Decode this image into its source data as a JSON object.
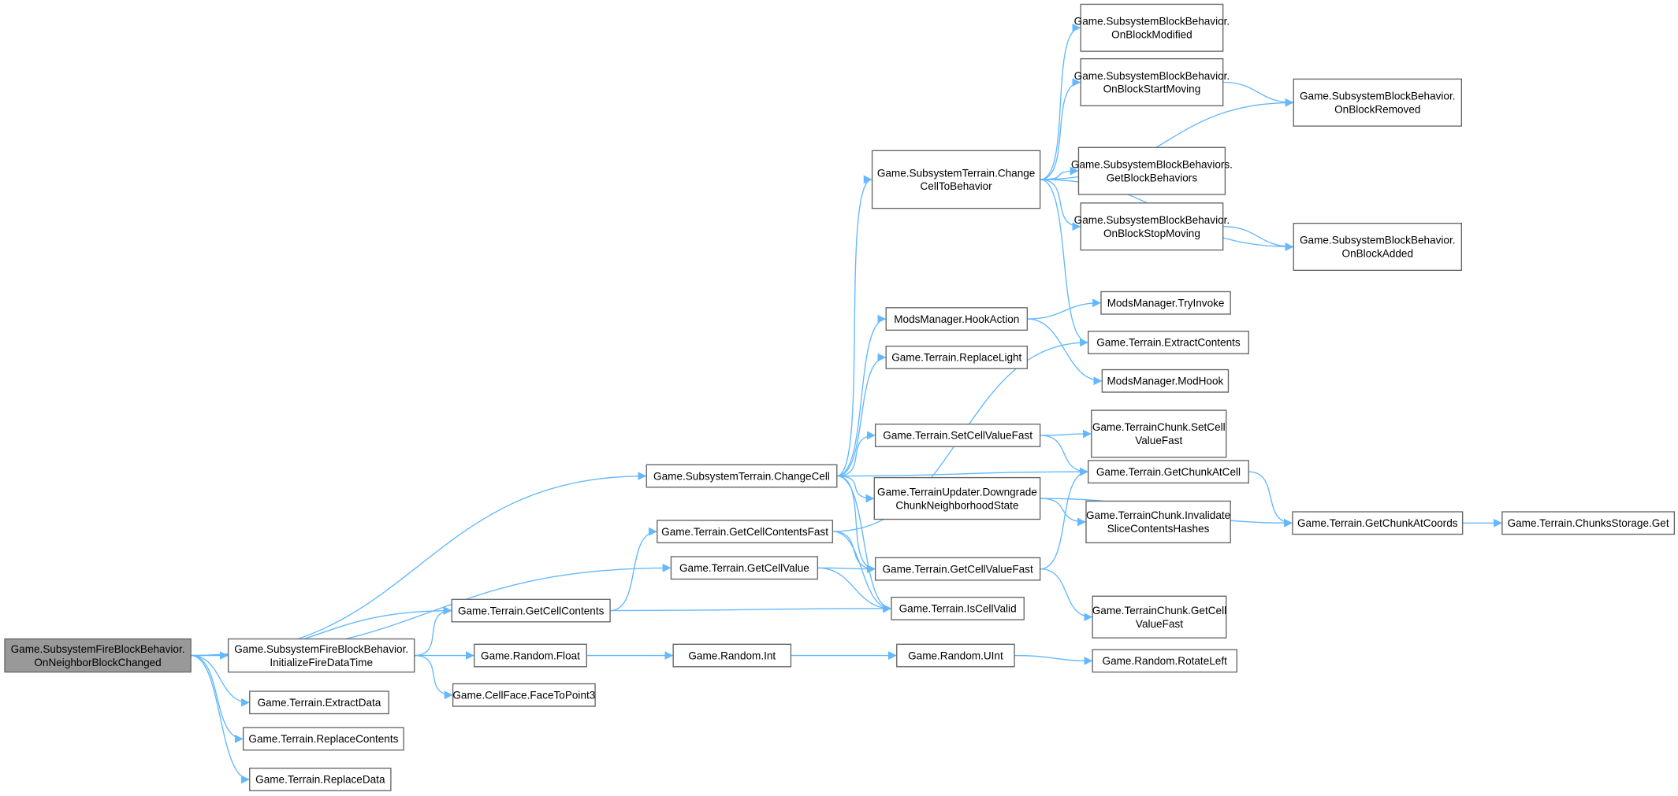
{
  "diagram": {
    "type": "call-graph",
    "edge_color": "#63b8ff",
    "root_fill": "#999999",
    "nodes": [
      {
        "id": "root",
        "lines": [
          "Game.SubsystemFireBlockBehavior.",
          "OnNeighborBlockChanged"
        ],
        "root": true
      },
      {
        "id": "initFire",
        "lines": [
          "Game.SubsystemFireBlockBehavior.",
          "InitializeFireDataTime"
        ]
      },
      {
        "id": "extractData",
        "lines": [
          "Game.Terrain.ExtractData"
        ]
      },
      {
        "id": "replaceContents",
        "lines": [
          "Game.Terrain.ReplaceContents"
        ]
      },
      {
        "id": "replaceData",
        "lines": [
          "Game.Terrain.ReplaceData"
        ]
      },
      {
        "id": "getCellContents",
        "lines": [
          "Game.Terrain.GetCellContents"
        ]
      },
      {
        "id": "randomFloat",
        "lines": [
          "Game.Random.Float"
        ]
      },
      {
        "id": "faceToPoint3",
        "lines": [
          "Game.CellFace.FaceToPoint3"
        ]
      },
      {
        "id": "changeCell",
        "lines": [
          "Game.SubsystemTerrain.ChangeCell"
        ]
      },
      {
        "id": "getCellContentsFast",
        "lines": [
          "Game.Terrain.GetCellContentsFast"
        ]
      },
      {
        "id": "getCellValue",
        "lines": [
          "Game.Terrain.GetCellValue"
        ]
      },
      {
        "id": "randomInt",
        "lines": [
          "Game.Random.Int"
        ]
      },
      {
        "id": "changeCellToBehavior",
        "lines": [
          "Game.SubsystemTerrain.Change",
          "CellToBehavior"
        ]
      },
      {
        "id": "hookAction",
        "lines": [
          "ModsManager.HookAction"
        ]
      },
      {
        "id": "replaceLight",
        "lines": [
          "Game.Terrain.ReplaceLight"
        ]
      },
      {
        "id": "setCellValueFast",
        "lines": [
          "Game.Terrain.SetCellValueFast"
        ]
      },
      {
        "id": "downgrade",
        "lines": [
          "Game.TerrainUpdater.Downgrade",
          "ChunkNeighborhoodState"
        ]
      },
      {
        "id": "getCellValueFast",
        "lines": [
          "Game.Terrain.GetCellValueFast"
        ]
      },
      {
        "id": "isCellValid",
        "lines": [
          "Game.Terrain.IsCellValid"
        ]
      },
      {
        "id": "randomUInt",
        "lines": [
          "Game.Random.UInt"
        ]
      },
      {
        "id": "onBlockModified",
        "lines": [
          "Game.SubsystemBlockBehavior.",
          "OnBlockModified"
        ]
      },
      {
        "id": "onBlockStartMoving",
        "lines": [
          "Game.SubsystemBlockBehavior.",
          "OnBlockStartMoving"
        ]
      },
      {
        "id": "getBlockBehaviors",
        "lines": [
          "Game.SubsystemBlockBehaviors.",
          "GetBlockBehaviors"
        ]
      },
      {
        "id": "onBlockStopMoving",
        "lines": [
          "Game.SubsystemBlockBehavior.",
          "OnBlockStopMoving"
        ]
      },
      {
        "id": "tryInvoke",
        "lines": [
          "ModsManager.TryInvoke"
        ]
      },
      {
        "id": "extractContents",
        "lines": [
          "Game.Terrain.ExtractContents"
        ]
      },
      {
        "id": "modHook",
        "lines": [
          "ModsManager.ModHook"
        ]
      },
      {
        "id": "chunkSetCellValueFast",
        "lines": [
          "Game.TerrainChunk.SetCell",
          "ValueFast"
        ]
      },
      {
        "id": "getChunkAtCell",
        "lines": [
          "Game.Terrain.GetChunkAtCell"
        ]
      },
      {
        "id": "invalidate",
        "lines": [
          "Game.TerrainChunk.Invalidate",
          "SliceContentsHashes"
        ]
      },
      {
        "id": "chunkGetCellValueFast",
        "lines": [
          "Game.TerrainChunk.GetCell",
          "ValueFast"
        ]
      },
      {
        "id": "rotateLeft",
        "lines": [
          "Game.Random.RotateLeft"
        ]
      },
      {
        "id": "onBlockRemoved",
        "lines": [
          "Game.SubsystemBlockBehavior.",
          "OnBlockRemoved"
        ]
      },
      {
        "id": "onBlockAdded",
        "lines": [
          "Game.SubsystemBlockBehavior.",
          "OnBlockAdded"
        ]
      },
      {
        "id": "getChunkAtCoords",
        "lines": [
          "Game.Terrain.GetChunkAtCoords"
        ]
      },
      {
        "id": "chunksStorageGet",
        "lines": [
          "Game.Terrain.ChunksStorage.Get"
        ]
      }
    ],
    "edges": [
      [
        "root",
        "initFire"
      ],
      [
        "root",
        "extractData"
      ],
      [
        "root",
        "replaceContents"
      ],
      [
        "root",
        "replaceData"
      ],
      [
        "root",
        "getCellContents"
      ],
      [
        "root",
        "getCellValue"
      ],
      [
        "root",
        "changeCell"
      ],
      [
        "initFire",
        "getCellContents"
      ],
      [
        "initFire",
        "randomFloat"
      ],
      [
        "initFire",
        "faceToPoint3"
      ],
      [
        "getCellContents",
        "getCellContentsFast"
      ],
      [
        "getCellContents",
        "isCellValid"
      ],
      [
        "randomFloat",
        "randomInt"
      ],
      [
        "randomInt",
        "randomUInt"
      ],
      [
        "randomUInt",
        "rotateLeft"
      ],
      [
        "changeCell",
        "changeCellToBehavior"
      ],
      [
        "changeCell",
        "hookAction"
      ],
      [
        "changeCell",
        "replaceLight"
      ],
      [
        "changeCell",
        "setCellValueFast"
      ],
      [
        "changeCell",
        "getChunkAtCell"
      ],
      [
        "changeCell",
        "downgrade"
      ],
      [
        "changeCell",
        "getCellValueFast"
      ],
      [
        "changeCell",
        "isCellValid"
      ],
      [
        "getCellContentsFast",
        "extractContents"
      ],
      [
        "getCellContentsFast",
        "getCellValueFast"
      ],
      [
        "getCellContentsFast",
        "isCellValid"
      ],
      [
        "getCellValue",
        "getCellValueFast"
      ],
      [
        "getCellValue",
        "isCellValid"
      ],
      [
        "changeCellToBehavior",
        "onBlockModified"
      ],
      [
        "changeCellToBehavior",
        "onBlockStartMoving"
      ],
      [
        "changeCellToBehavior",
        "onBlockRemoved"
      ],
      [
        "changeCellToBehavior",
        "getBlockBehaviors"
      ],
      [
        "changeCellToBehavior",
        "onBlockStopMoving"
      ],
      [
        "changeCellToBehavior",
        "onBlockAdded"
      ],
      [
        "changeCellToBehavior",
        "extractContents"
      ],
      [
        "onBlockStartMoving",
        "onBlockRemoved"
      ],
      [
        "onBlockStopMoving",
        "onBlockAdded"
      ],
      [
        "hookAction",
        "tryInvoke"
      ],
      [
        "hookAction",
        "modHook"
      ],
      [
        "setCellValueFast",
        "chunkSetCellValueFast"
      ],
      [
        "setCellValueFast",
        "getChunkAtCell"
      ],
      [
        "downgrade",
        "invalidate"
      ],
      [
        "downgrade",
        "getChunkAtCoords"
      ],
      [
        "getCellValueFast",
        "getChunkAtCell"
      ],
      [
        "getCellValueFast",
        "chunkGetCellValueFast"
      ],
      [
        "getChunkAtCell",
        "getChunkAtCoords"
      ],
      [
        "getChunkAtCoords",
        "chunksStorageGet"
      ]
    ]
  }
}
